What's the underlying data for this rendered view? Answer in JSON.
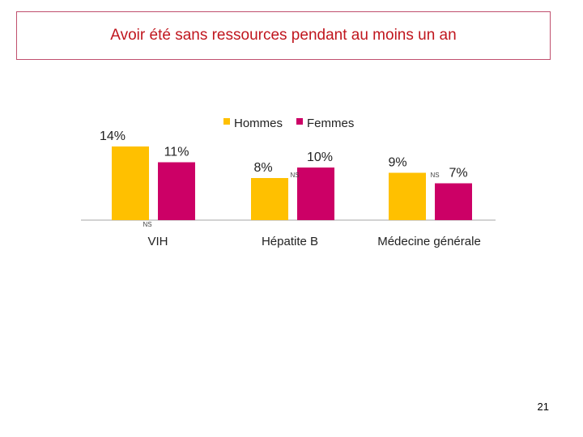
{
  "title": "Avoir été sans ressources pendant au moins un an",
  "page_number": "21",
  "chart_data": {
    "type": "bar",
    "categories": [
      "VIH",
      "Hépatite B",
      "Médecine générale"
    ],
    "series": [
      {
        "name": "Hommes",
        "color": "#ffc000",
        "values": [
          14,
          8,
          9
        ],
        "labels": [
          "14%",
          "8%",
          "9%"
        ]
      },
      {
        "name": "Femmes",
        "color": "#cc0066",
        "values": [
          11,
          10,
          7
        ],
        "labels": [
          "11%",
          "10%",
          "7%"
        ]
      }
    ],
    "significance_labels": [
      "NS",
      "NS",
      "NS"
    ],
    "ylim": [
      0,
      16
    ],
    "legend_position": "top"
  }
}
